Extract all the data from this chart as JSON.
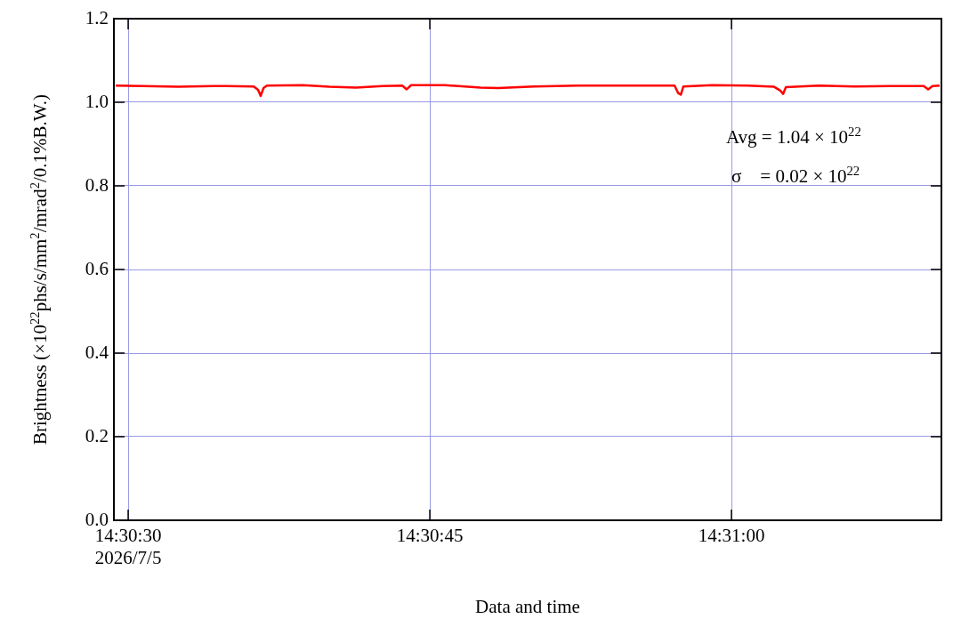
{
  "chart_data": {
    "type": "line",
    "xlabel": "Data and time",
    "ylabel": "Brightness (×10$^{22}$phs/s/mm$^{2}$/mrad$^{2}$/0.1%B.W.)",
    "annotations": [
      "Avg = 1.04 × 10$^{22}$",
      "σ    = 0.02 × 10$^{22}$"
    ],
    "xlim": [
      14.5081361,
      14.5195667
    ],
    "xticks": [
      {
        "value": 14.5083333,
        "label": "14:30:30\n2026/7/5"
      },
      {
        "value": 14.5125,
        "label": "14:30:45"
      },
      {
        "value": 14.5166667,
        "label": "14:31:00"
      }
    ],
    "ylim": [
      0,
      1.2
    ],
    "yticks": [
      {
        "value": 0,
        "label": "0.0"
      },
      {
        "value": 0.2,
        "label": "0.2"
      },
      {
        "value": 0.4,
        "label": "0.4"
      },
      {
        "value": 0.6,
        "label": "0.6"
      },
      {
        "value": 0.8,
        "label": "0.8"
      },
      {
        "value": 1,
        "label": "1.0"
      },
      {
        "value": 1.2,
        "label": "1.2"
      }
    ],
    "grid": true,
    "legend": false,
    "marker": "none",
    "line_style": "solid",
    "series": [
      {
        "color": "#ff0000",
        "x": [
          14.5081611,
          14.5085306,
          14.5090222,
          14.5095139,
          14.5100667,
          14.5101278,
          14.5101639,
          14.5102028,
          14.51025,
          14.5107417,
          14.5111111,
          14.5114806,
          14.5118472,
          14.5121194,
          14.5121806,
          14.5122417,
          14.5127083,
          14.5132,
          14.5134472,
          14.5139389,
          14.5145528,
          14.5151667,
          14.5158806,
          14.5159306,
          14.5159667,
          14.5160028,
          14.5163972,
          14.5168889,
          14.5172556,
          14.5173417,
          14.5173806,
          14.5174167,
          14.5178722,
          14.5183639,
          14.5188556,
          14.5193222,
          14.5193833,
          14.5194444,
          14.5195417
        ],
        "values": [
          1.04,
          1.039,
          1.037,
          1.039,
          1.038,
          1.03,
          1.015,
          1.034,
          1.04,
          1.041,
          1.037,
          1.035,
          1.039,
          1.04,
          1.031,
          1.041,
          1.041,
          1.035,
          1.034,
          1.038,
          1.04,
          1.04,
          1.04,
          1.022,
          1.018,
          1.038,
          1.041,
          1.04,
          1.037,
          1.028,
          1.02,
          1.036,
          1.04,
          1.038,
          1.039,
          1.039,
          1.031,
          1.039,
          1.04
        ]
      }
    ]
  }
}
